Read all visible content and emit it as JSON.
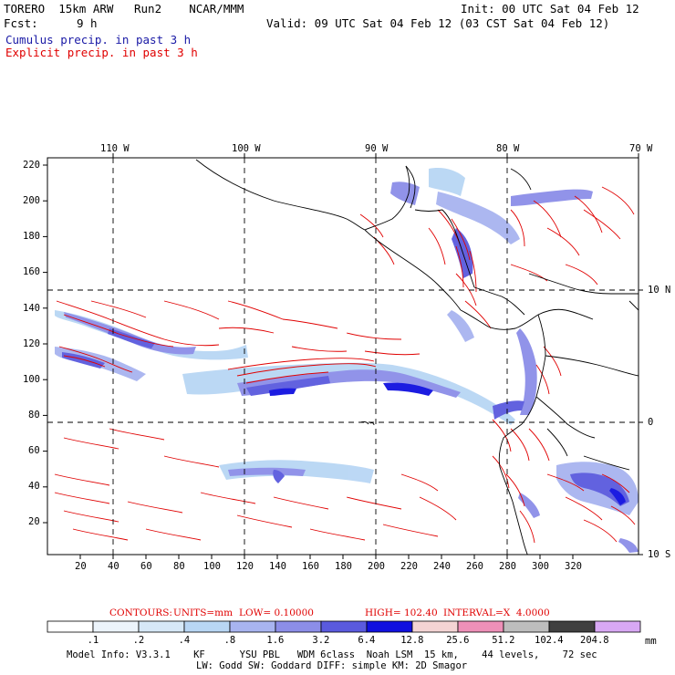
{
  "header": {
    "title_left": "TORERO  15km ARW   Run2    NCAR/MMM",
    "init": "Init: 00 UTC Sat 04 Feb 12",
    "fcst_label": "Fcst:",
    "fcst_value": "9 h",
    "valid": "Valid: 09 UTC Sat 04 Feb 12 (03 CST Sat 04 Feb 12)",
    "line_cumulus": "Cumulus precip. in past 3 h",
    "line_explicit": "Explicit precip. in past 3 h"
  },
  "map": {
    "lon_labels": [
      "110 W",
      "100 W",
      "90 W",
      "80 W",
      "70 W"
    ],
    "lat_labels": [
      "10 N",
      "0",
      "10 S"
    ],
    "y_ticks": [
      "220",
      "200",
      "180",
      "160",
      "140",
      "120",
      "100",
      "80",
      "60",
      "40",
      "20"
    ],
    "x_ticks": [
      "20",
      "40",
      "60",
      "80",
      "100",
      "120",
      "140",
      "160",
      "180",
      "200",
      "220",
      "240",
      "260",
      "280",
      "300",
      "320"
    ]
  },
  "contours": {
    "label": "CONTOURS:",
    "units": "UNITS=mm",
    "low": "LOW= 0.10000",
    "high": "HIGH= 102.40",
    "interval": "INTERVAL=X  4.0000"
  },
  "colorbar": {
    "labels": [
      ".1",
      ".2",
      ".4",
      ".8",
      "1.6",
      "3.2",
      "6.4",
      "12.8",
      "25.6",
      "51.2",
      "102.4",
      "204.8"
    ],
    "units": "mm",
    "colors": [
      "#ffffff",
      "#ecf4fb",
      "#d6e8f7",
      "#b8d6f4",
      "#a8b4f0",
      "#8c8ee8",
      "#5a5ade",
      "#1010e0",
      "#f4d4d4",
      "#ee90b8",
      "#bdbdbd",
      "#404040",
      "#d8a8f4"
    ]
  },
  "model_info": {
    "line1": "Model Info: V3.3.1    KF      YSU PBL   WDM 6class  Noah LSM  15 km,    44 levels,    72 sec",
    "line2": "LW: Godd SW: Goddard DIFF: simple KM: 2D Smagor"
  },
  "colors": {
    "cumulus": "#1a1aa6",
    "explicit": "#e00000",
    "coast": "#000000"
  }
}
